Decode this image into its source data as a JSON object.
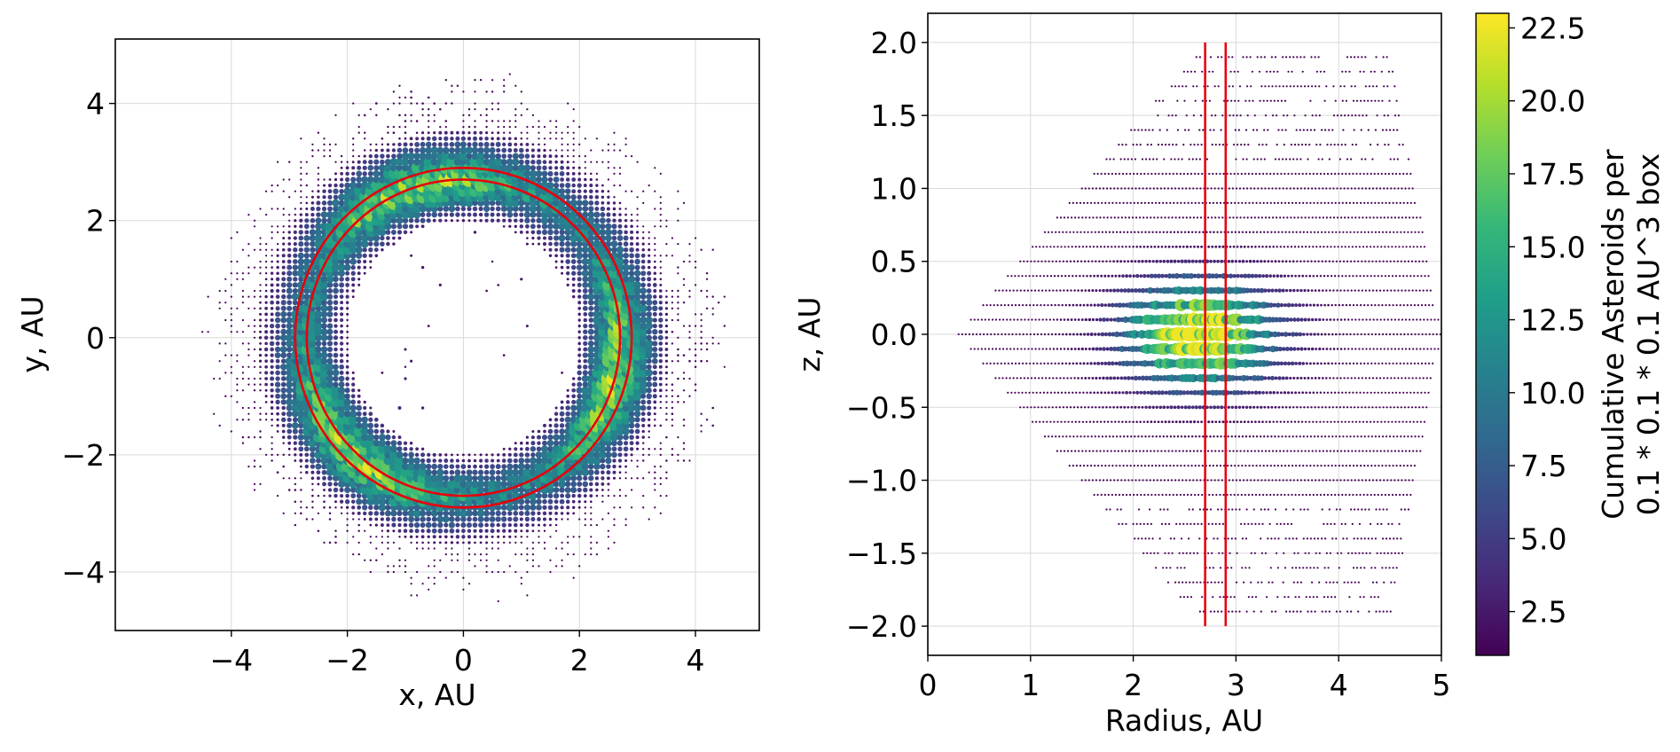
{
  "chart_data": [
    {
      "type": "scatter",
      "xlabel": "x, AU",
      "ylabel": "y, AU",
      "xlim": [
        -6.0,
        5.1
      ],
      "ylim": [
        -5.0,
        5.1
      ],
      "xticks": [
        -4,
        -2,
        0,
        2,
        4
      ],
      "xtick_labels": [
        "−4",
        "−2",
        "0",
        "2",
        "4"
      ],
      "yticks": [
        -4,
        -2,
        0,
        2,
        4
      ],
      "ytick_labels": [
        "−4",
        "−2",
        "0",
        "2",
        "4"
      ],
      "grid": true,
      "point_size_and_color_by": "cumulative density",
      "distribution": {
        "inner_radius": 2.0,
        "peak_radius": 2.7,
        "outer_radius": 3.6,
        "sparse_extent": 4.6
      },
      "annotations": [
        {
          "shape": "circle",
          "center": [
            0,
            0
          ],
          "radius": 2.7,
          "color": "#e8000b"
        },
        {
          "shape": "circle",
          "center": [
            0,
            0
          ],
          "radius": 2.9,
          "color": "#e8000b"
        }
      ]
    },
    {
      "type": "scatter",
      "xlabel": "Radius, AU",
      "ylabel": "z, AU",
      "xlim": [
        0,
        5
      ],
      "ylim": [
        -2.2,
        2.2
      ],
      "xticks": [
        0,
        1,
        2,
        3,
        4,
        5
      ],
      "xtick_labels": [
        "0",
        "1",
        "2",
        "3",
        "4",
        "5"
      ],
      "yticks": [
        -2.0,
        -1.5,
        -1.0,
        -0.5,
        0.0,
        0.5,
        1.0,
        1.5,
        2.0
      ],
      "ytick_labels": [
        "−2.0",
        "−1.5",
        "−1.0",
        "−0.5",
        "0.0",
        "0.5",
        "1.0",
        "1.5",
        "2.0"
      ],
      "grid": true,
      "z_row_step": 0.1,
      "point_size_and_color_by": "cumulative density",
      "annotations": [
        {
          "shape": "vline",
          "x": 2.7,
          "y_range": [
            -2.0,
            2.0
          ],
          "color": "#e8000b"
        },
        {
          "shape": "vline",
          "x": 2.9,
          "y_range": [
            -2.0,
            2.0
          ],
          "color": "#e8000b"
        }
      ]
    }
  ],
  "colorbar": {
    "label_line1": "Cumulative Asteroids per",
    "label_line2": "0.1 * 0.1 * 0.1 AU^3 box",
    "colormap": "viridis",
    "range": [
      1.0,
      23.0
    ],
    "ticks": [
      2.5,
      5.0,
      7.5,
      10.0,
      12.5,
      15.0,
      17.5,
      20.0,
      22.5
    ],
    "tick_labels": [
      "2.5",
      "5.0",
      "7.5",
      "10.0",
      "12.5",
      "15.0",
      "17.5",
      "20.0",
      "22.5"
    ],
    "colors": [
      "#440154",
      "#482878",
      "#3e4989",
      "#31688e",
      "#26828e",
      "#1f9e89",
      "#35b779",
      "#6ece58",
      "#b5de2b",
      "#fde725"
    ]
  }
}
